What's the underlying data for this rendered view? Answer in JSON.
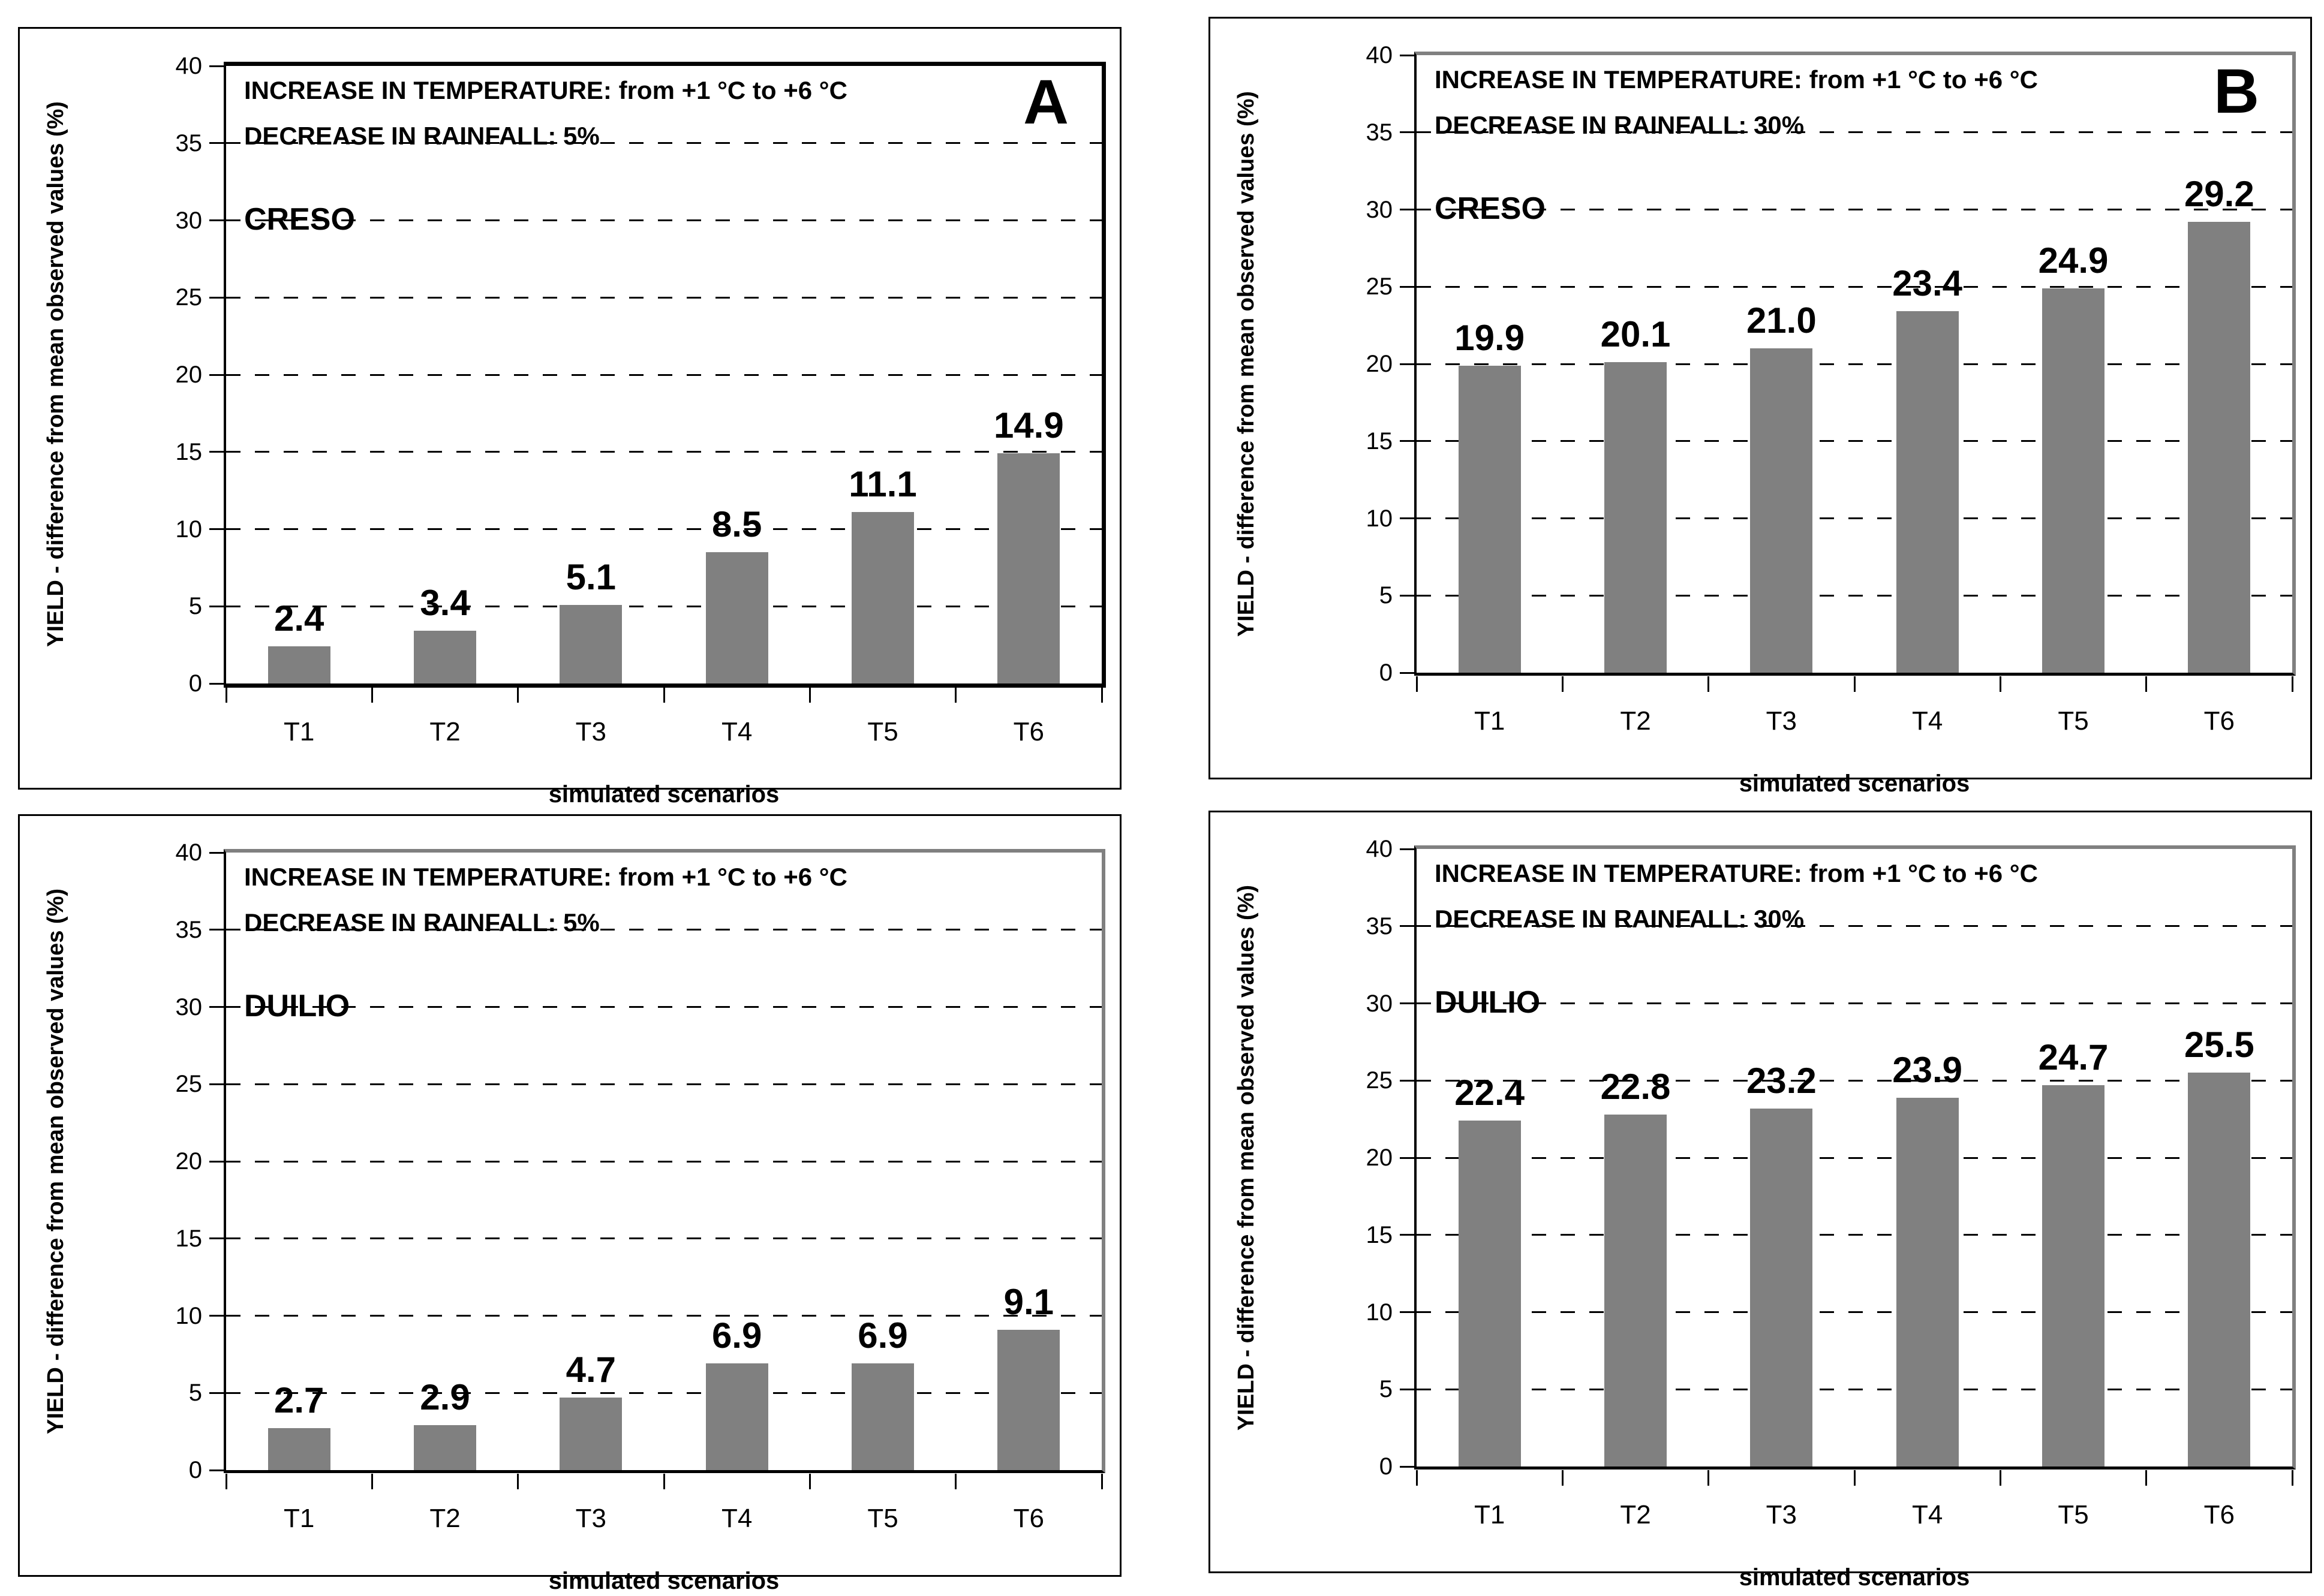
{
  "figure": {
    "background": "#ffffff",
    "bar_color": "#808080",
    "grid_color": "#000000",
    "layout": "2x2 grid of bar charts"
  },
  "chart_data": [
    {
      "id": "top-left",
      "type": "bar",
      "panel_letter": "A",
      "header_temperature": "INCREASE IN TEMPERATURE: from +1 °C to +6 °C",
      "header_rainfall": "DECREASE IN RAINFALL: 5%",
      "title": "CRESO",
      "categories": [
        "T1",
        "T2",
        "T3",
        "T4",
        "T5",
        "T6"
      ],
      "values": [
        2.4,
        3.4,
        5.1,
        8.5,
        11.1,
        14.9
      ],
      "value_labels": [
        "2.4",
        "3.4",
        "5.1",
        "8.5",
        "11.1",
        "14.9"
      ],
      "xlabel": "simulated scenarios",
      "ylabel": "YIELD - difference from mean observed values (%)",
      "ylim": [
        0,
        40
      ],
      "y_tick_labels": [
        "0",
        "5",
        "10",
        "15",
        "20",
        "25",
        "30",
        "35",
        "40"
      ],
      "grid": "dashed-horizontal",
      "bar_color": "#808080",
      "frame_color": "#000000"
    },
    {
      "id": "top-right",
      "type": "bar",
      "panel_letter": "B",
      "header_temperature": "INCREASE IN TEMPERATURE: from +1 °C to +6 °C",
      "header_rainfall": "DECREASE IN RAINFALL: 30%",
      "title": "CRESO",
      "categories": [
        "T1",
        "T2",
        "T3",
        "T4",
        "T5",
        "T6"
      ],
      "values": [
        19.9,
        20.1,
        21.0,
        23.4,
        24.9,
        29.2
      ],
      "value_labels": [
        "19.9",
        "20.1",
        "21.0",
        "23.4",
        "24.9",
        "29.2"
      ],
      "xlabel": "simulated scenarios",
      "ylabel": "YIELD - difference from mean observed values (%)",
      "ylim": [
        0,
        40
      ],
      "y_tick_labels": [
        "0",
        "5",
        "10",
        "15",
        "20",
        "25",
        "30",
        "35",
        "40"
      ],
      "grid": "dashed-horizontal",
      "bar_color": "#808080",
      "frame_color": "#808080"
    },
    {
      "id": "bottom-left",
      "type": "bar",
      "panel_letter": "",
      "header_temperature": "INCREASE IN TEMPERATURE: from +1 °C to +6 °C",
      "header_rainfall": "DECREASE IN RAINFALL: 5%",
      "title": "DUILIO",
      "categories": [
        "T1",
        "T2",
        "T3",
        "T4",
        "T5",
        "T6"
      ],
      "values": [
        2.7,
        2.9,
        4.7,
        6.9,
        6.9,
        9.1
      ],
      "value_labels": [
        "2.7",
        "2.9",
        "4.7",
        "6.9",
        "6.9",
        "9.1"
      ],
      "xlabel": "simulated scenarios",
      "ylabel": "YIELD - difference from mean observed values (%)",
      "ylim": [
        0,
        40
      ],
      "y_tick_labels": [
        "0",
        "5",
        "10",
        "15",
        "20",
        "25",
        "30",
        "35",
        "40"
      ],
      "grid": "dashed-horizontal",
      "bar_color": "#808080",
      "frame_color": "#808080"
    },
    {
      "id": "bottom-right",
      "type": "bar",
      "panel_letter": "",
      "header_temperature": "INCREASE IN TEMPERATURE: from +1 °C to +6 °C",
      "header_rainfall": "DECREASE IN RAINFALL: 30%",
      "title": "DUILIO",
      "categories": [
        "T1",
        "T2",
        "T3",
        "T4",
        "T5",
        "T6"
      ],
      "values": [
        22.4,
        22.8,
        23.2,
        23.9,
        24.7,
        25.5
      ],
      "value_labels": [
        "22.4",
        "22.8",
        "23.2",
        "23.9",
        "24.7",
        "25.5"
      ],
      "xlabel": "simulated scenarios",
      "ylabel": "YIELD - difference from mean observed values (%)",
      "ylim": [
        0,
        40
      ],
      "y_tick_labels": [
        "0",
        "5",
        "10",
        "15",
        "20",
        "25",
        "30",
        "35",
        "40"
      ],
      "grid": "dashed-horizontal",
      "bar_color": "#808080",
      "frame_color": "#808080"
    }
  ]
}
